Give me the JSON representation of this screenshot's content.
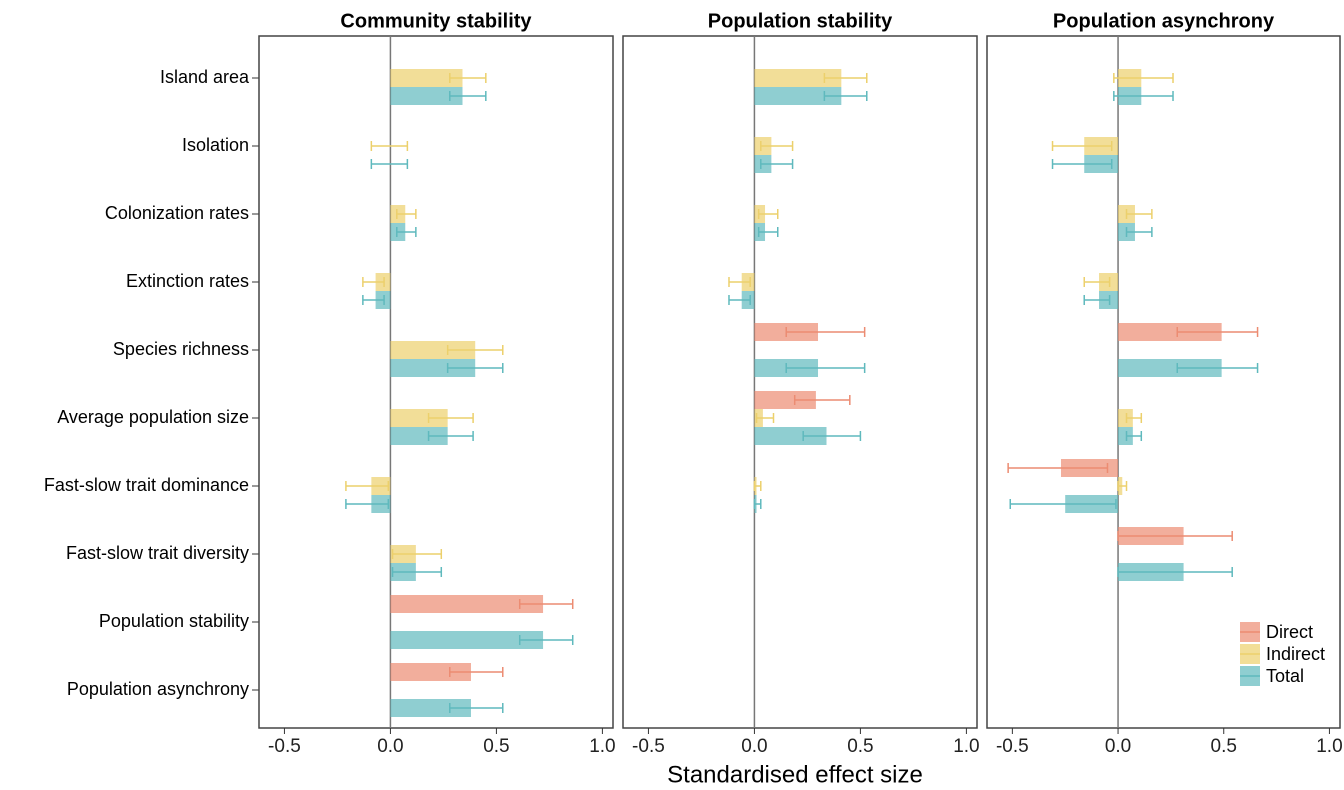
{
  "chart_data": {
    "type": "bar",
    "orientation": "horizontal",
    "xlabel": "Standardised effect size",
    "categories": [
      "Island area",
      "Isolation",
      "Colonization rates",
      "Extinction rates",
      "Species richness",
      "Average population size",
      "Fast-slow trait dominance",
      "Fast-slow trait diversity",
      "Population stability",
      "Population asynchrony"
    ],
    "xlim": [
      -0.62,
      1.05
    ],
    "xticks": [
      -0.5,
      {
        "value": 0,
        "label": "0.0"
      },
      0.5,
      {
        "value": 1,
        "label": "1.0"
      }
    ],
    "legend": "bottom right",
    "series": [
      {
        "name": "Direct",
        "color": "#ec8c72"
      },
      {
        "name": "Indirect",
        "color": "#ecd06c"
      },
      {
        "name": "Total",
        "color": "#5fb9bd"
      }
    ],
    "panels": [
      {
        "title": "Community stability",
        "series": [
          {
            "values": [
              null,
              null,
              null,
              null,
              null,
              null,
              null,
              null,
              0.72,
              0.38
            ],
            "lower": [
              null,
              null,
              null,
              null,
              null,
              null,
              null,
              null,
              0.61,
              0.28
            ],
            "upper": [
              null,
              null,
              null,
              null,
              null,
              null,
              null,
              null,
              0.86,
              0.53
            ]
          },
          {
            "values": [
              0.34,
              0.0,
              0.07,
              -0.07,
              0.4,
              0.27,
              -0.09,
              0.12,
              null,
              null
            ],
            "lower": [
              0.28,
              -0.09,
              0.03,
              -0.13,
              0.27,
              0.18,
              -0.21,
              0.01,
              null,
              null
            ],
            "upper": [
              0.45,
              0.08,
              0.12,
              -0.03,
              0.53,
              0.39,
              -0.01,
              0.24,
              null,
              null
            ]
          },
          {
            "values": [
              0.34,
              0.0,
              0.07,
              -0.07,
              0.4,
              0.27,
              -0.09,
              0.12,
              0.72,
              0.38
            ],
            "lower": [
              0.28,
              -0.09,
              0.03,
              -0.13,
              0.27,
              0.18,
              -0.21,
              0.01,
              0.61,
              0.28
            ],
            "upper": [
              0.45,
              0.08,
              0.12,
              -0.03,
              0.53,
              0.39,
              -0.01,
              0.24,
              0.86,
              0.53
            ]
          }
        ]
      },
      {
        "title": "Population stability",
        "series": [
          {
            "values": [
              null,
              null,
              null,
              null,
              0.3,
              0.29,
              null,
              null,
              null,
              null
            ],
            "lower": [
              null,
              null,
              null,
              null,
              0.15,
              0.19,
              null,
              null,
              null,
              null
            ],
            "upper": [
              null,
              null,
              null,
              null,
              0.52,
              0.45,
              null,
              null,
              null,
              null
            ]
          },
          {
            "values": [
              0.41,
              0.08,
              0.05,
              -0.06,
              null,
              0.04,
              0.01,
              null,
              null,
              null
            ],
            "lower": [
              0.33,
              0.03,
              0.02,
              -0.12,
              null,
              0.01,
              0.0,
              null,
              null,
              null
            ],
            "upper": [
              0.53,
              0.18,
              0.11,
              -0.02,
              null,
              0.09,
              0.03,
              null,
              null,
              null
            ]
          },
          {
            "values": [
              0.41,
              0.08,
              0.05,
              -0.06,
              0.3,
              0.34,
              0.01,
              null,
              null,
              null
            ],
            "lower": [
              0.33,
              0.03,
              0.02,
              -0.12,
              0.15,
              0.23,
              0.0,
              null,
              null,
              null
            ],
            "upper": [
              0.53,
              0.18,
              0.11,
              -0.02,
              0.52,
              0.5,
              0.03,
              null,
              null,
              null
            ]
          }
        ]
      },
      {
        "title": "Population asynchrony",
        "series": [
          {
            "values": [
              null,
              null,
              null,
              null,
              0.49,
              null,
              -0.27,
              0.31,
              null,
              null
            ],
            "lower": [
              null,
              null,
              null,
              null,
              0.28,
              null,
              -0.52,
              0.0,
              null,
              null
            ],
            "upper": [
              null,
              null,
              null,
              null,
              0.66,
              null,
              -0.05,
              0.54,
              null,
              null
            ]
          },
          {
            "values": [
              0.11,
              -0.16,
              0.08,
              -0.09,
              null,
              0.07,
              0.02,
              null,
              null,
              null
            ],
            "lower": [
              -0.02,
              -0.31,
              0.04,
              -0.16,
              null,
              0.04,
              0.0,
              null,
              null,
              null
            ],
            "upper": [
              0.26,
              -0.03,
              0.16,
              -0.04,
              null,
              0.11,
              0.04,
              null,
              null,
              null
            ]
          },
          {
            "values": [
              0.11,
              -0.16,
              0.08,
              -0.09,
              0.49,
              0.07,
              -0.25,
              0.31,
              null,
              null
            ],
            "lower": [
              -0.02,
              -0.31,
              0.04,
              -0.16,
              0.28,
              0.04,
              -0.51,
              0.0,
              null,
              null
            ],
            "upper": [
              0.26,
              -0.03,
              0.16,
              -0.04,
              0.66,
              0.11,
              -0.01,
              0.54,
              null,
              null
            ]
          }
        ]
      }
    ]
  }
}
